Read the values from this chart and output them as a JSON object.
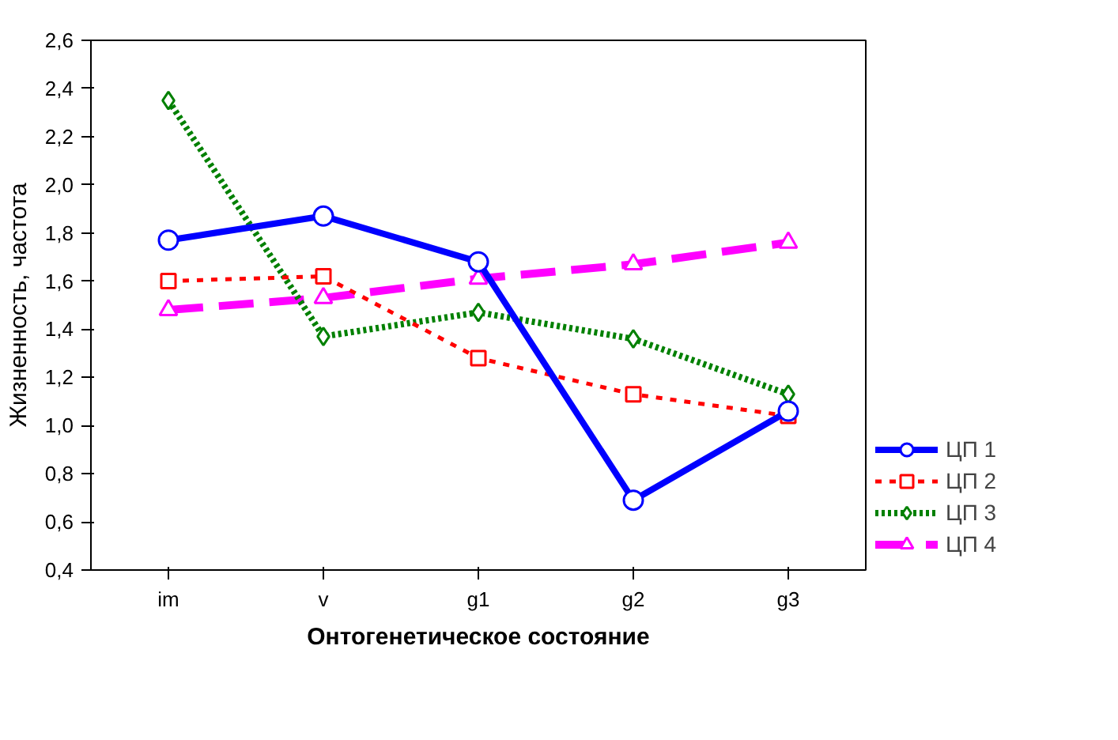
{
  "chart_data": {
    "type": "line",
    "xlabel": "Онтогенетическое состояние",
    "ylabel": "Жизненность, частота",
    "categories": [
      "im",
      "v",
      "g1",
      "g2",
      "g3"
    ],
    "series": [
      {
        "name": "ЦП 1",
        "color": "#0000ff",
        "marker": "circle",
        "line_style": "solid",
        "values": [
          1.77,
          1.87,
          1.68,
          0.69,
          1.06
        ]
      },
      {
        "name": "ЦП 2",
        "color": "#ff0000",
        "marker": "square",
        "line_style": "dashed",
        "values": [
          1.6,
          1.62,
          1.28,
          1.13,
          1.04
        ]
      },
      {
        "name": "ЦП 3",
        "color": "#008000",
        "marker": "diamond",
        "line_style": "dotted",
        "values": [
          2.35,
          1.37,
          1.47,
          1.36,
          1.13
        ]
      },
      {
        "name": "ЦП 4",
        "color": "#ff00ff",
        "marker": "triangle",
        "line_style": "longdash",
        "values": [
          1.48,
          1.53,
          1.61,
          1.67,
          1.76
        ]
      }
    ],
    "ylim": [
      0.4,
      2.6
    ],
    "yticks": [
      {
        "value": 0.4,
        "label": "0,4"
      },
      {
        "value": 0.6,
        "label": "0,6"
      },
      {
        "value": 0.8,
        "label": "0,8"
      },
      {
        "value": 1.0,
        "label": "1,0"
      },
      {
        "value": 1.2,
        "label": "1,2"
      },
      {
        "value": 1.4,
        "label": "1,4"
      },
      {
        "value": 1.6,
        "label": "1,6"
      },
      {
        "value": 1.8,
        "label": "1,8"
      },
      {
        "value": 2.0,
        "label": "2,0"
      },
      {
        "value": 2.2,
        "label": "2,2"
      },
      {
        "value": 2.4,
        "label": "2,4"
      },
      {
        "value": 2.6,
        "label": "2,6"
      }
    ],
    "grid": false,
    "legend": "bottom right"
  }
}
